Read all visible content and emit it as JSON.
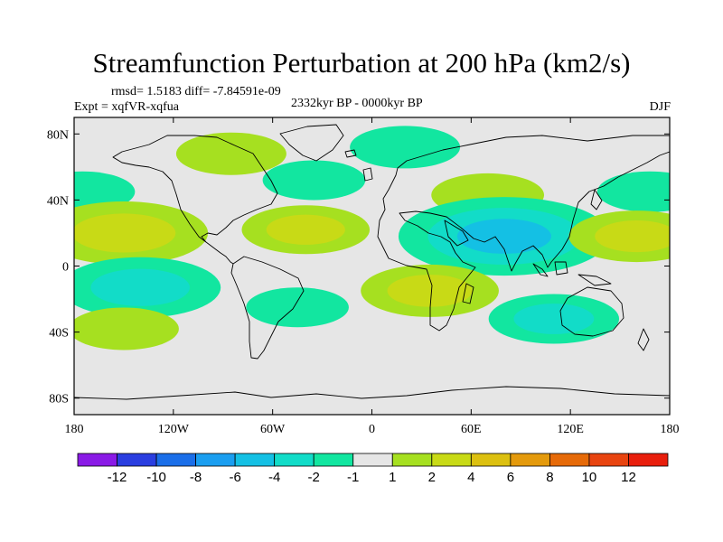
{
  "chart_data": {
    "type": "heatmap",
    "title": "Streamfunction Perturbation at 200 hPa (km2/s)",
    "stats": "rmsd= 1.5183 diff= -7.84591e-09",
    "experiment": "Expt = xqfVR-xqfua",
    "period": "2332kyr BP - 0000kyr BP",
    "season": "DJF",
    "x_range": [
      -180,
      180
    ],
    "y_range": [
      -90,
      90
    ],
    "x_ticks": [
      {
        "value": -180,
        "label": "180"
      },
      {
        "value": -120,
        "label": "120W"
      },
      {
        "value": -60,
        "label": "60W"
      },
      {
        "value": 0,
        "label": "0"
      },
      {
        "value": 60,
        "label": "60E"
      },
      {
        "value": 120,
        "label": "120E"
      },
      {
        "value": 180,
        "label": "180"
      }
    ],
    "y_ticks": [
      {
        "value": 80,
        "label": "80N"
      },
      {
        "value": 40,
        "label": "40N"
      },
      {
        "value": 0,
        "label": "0"
      },
      {
        "value": -40,
        "label": "40S"
      },
      {
        "value": -80,
        "label": "80S"
      }
    ],
    "colorbar": {
      "colors": [
        "#8a1ae6",
        "#2a3ee0",
        "#1a6ee8",
        "#1a9ef0",
        "#14c0e4",
        "#12dcc8",
        "#12e6a0",
        "#e6e6e6",
        "#a6e020",
        "#c8da16",
        "#dcc010",
        "#e49a0c",
        "#e66a08",
        "#e84410",
        "#e81e0c"
      ],
      "labels": [
        "-12",
        "-10",
        "-8",
        "-6",
        "-4",
        "-2",
        "-1",
        "1",
        "2",
        "4",
        "6",
        "8",
        "10",
        "12"
      ]
    },
    "anomalies": [
      {
        "lon": -85,
        "lat": 68,
        "value": 1.5
      },
      {
        "lon": 20,
        "lat": 72,
        "value": -1.5
      },
      {
        "lon": -35,
        "lat": 52,
        "value": -1.2
      },
      {
        "lon": 70,
        "lat": 43,
        "value": 1.6
      },
      {
        "lon": 168,
        "lat": 45,
        "value": -1.3
      },
      {
        "lon": -175,
        "lat": 45,
        "value": -1.3
      },
      {
        "lon": -150,
        "lat": 20,
        "value": 3.8
      },
      {
        "lon": -40,
        "lat": 22,
        "value": 2.2
      },
      {
        "lon": 80,
        "lat": 18,
        "value": -5.5
      },
      {
        "lon": 160,
        "lat": 18,
        "value": 2.5
      },
      {
        "lon": -140,
        "lat": -13,
        "value": -3.5
      },
      {
        "lon": 35,
        "lat": -15,
        "value": 2.6
      },
      {
        "lon": -150,
        "lat": -38,
        "value": 1.5
      },
      {
        "lon": -45,
        "lat": -25,
        "value": -1.2
      },
      {
        "lon": 110,
        "lat": -32,
        "value": -2.3
      }
    ]
  }
}
